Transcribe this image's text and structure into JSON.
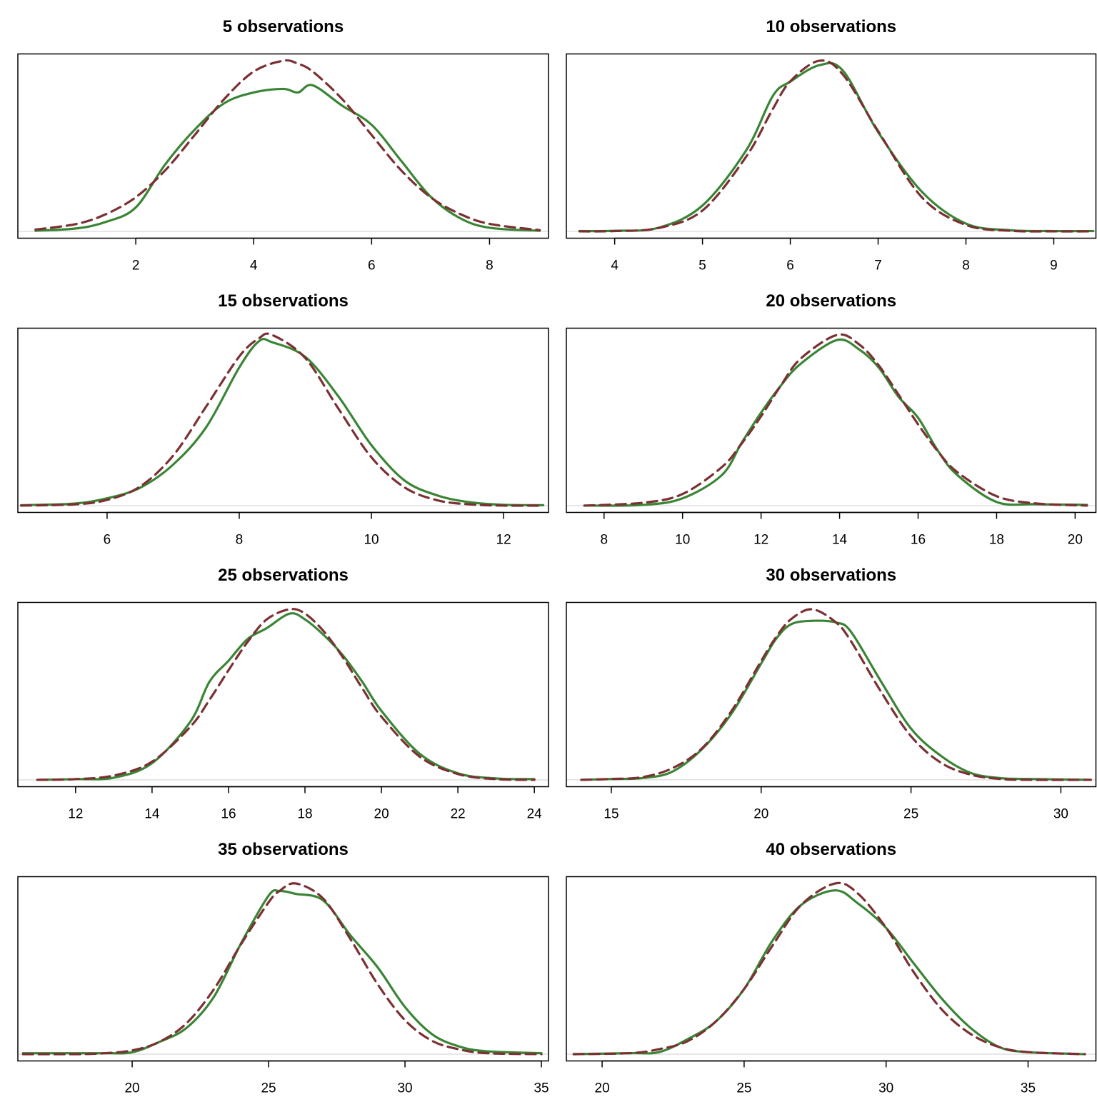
{
  "chart_data": [
    {
      "type": "line",
      "title": "5 observations",
      "x": [
        0.3,
        1,
        1.5,
        2,
        2.5,
        3,
        3.5,
        4,
        4.5,
        4.75,
        5,
        5.5,
        6,
        6.5,
        7,
        7.5,
        8,
        8.85
      ],
      "series": [
        {
          "color": "#3a8535",
          "linestyle": "solid",
          "values": [
            0.001,
            0.005,
            0.016,
            0.04,
            0.112,
            0.17,
            0.214,
            0.232,
            0.238,
            0.232,
            0.244,
            0.21,
            0.178,
            0.118,
            0.058,
            0.022,
            0.006,
            0.001
          ]
        },
        {
          "color": "#7b3033",
          "linestyle": "dashed",
          "values": [
            0.003,
            0.0125,
            0.029,
            0.057,
            0.102,
            0.161,
            0.221,
            0.267,
            0.285,
            0.28,
            0.267,
            0.221,
            0.161,
            0.102,
            0.057,
            0.029,
            0.0125,
            0.002
          ]
        }
      ],
      "xlim": [
        0,
        9
      ],
      "xticks": [
        2,
        4,
        6,
        8
      ],
      "ylim": [
        -0.0114,
        0.2964
      ]
    },
    {
      "type": "line",
      "title": "10 observations",
      "x": [
        3.6,
        4,
        4.5,
        5,
        5.5,
        5.8,
        6,
        6.33,
        6.6,
        7,
        7.5,
        8,
        8.5,
        9,
        9.45
      ],
      "series": [
        {
          "color": "#3a8535",
          "linestyle": "solid",
          "values": [
            0.001,
            0.002,
            0.013,
            0.093,
            0.293,
            0.487,
            0.539,
            0.598,
            0.578,
            0.357,
            0.142,
            0.028,
            0.004,
            0.001,
            0.001
          ]
        },
        {
          "color": "#7b3033",
          "linestyle": "dashed",
          "values": [
            0,
            0.001,
            0.012,
            0.075,
            0.27,
            0.44,
            0.54,
            0.614,
            0.564,
            0.361,
            0.122,
            0.023,
            0.002,
            0,
            0
          ]
        }
      ],
      "xlim": [
        3.45,
        9.48
      ],
      "xticks": [
        4,
        5,
        6,
        7,
        8,
        9
      ],
      "ylim": [
        -0.0246,
        0.6386
      ]
    },
    {
      "type": "line",
      "title": "15 observations",
      "x": [
        4.7,
        5.5,
        6,
        6.5,
        7,
        7.5,
        8,
        8.3,
        8.5,
        9,
        9.5,
        10,
        10.5,
        11,
        11.5,
        12,
        12.6
      ],
      "series": [
        {
          "color": "#3a8535",
          "linestyle": "solid",
          "values": [
            0.001,
            0.005,
            0.018,
            0.044,
            0.101,
            0.193,
            0.34,
            0.405,
            0.402,
            0.366,
            0.269,
            0.149,
            0.062,
            0.025,
            0.008,
            0.002,
            0.001
          ]
        },
        {
          "color": "#7b3033",
          "linestyle": "dashed",
          "values": [
            0,
            0.003,
            0.014,
            0.047,
            0.123,
            0.244,
            0.367,
            0.412,
            0.42,
            0.363,
            0.239,
            0.119,
            0.045,
            0.013,
            0.003,
            0,
            0
          ]
        }
      ],
      "xlim": [
        4.65,
        12.68
      ],
      "xticks": [
        6,
        8,
        10,
        12
      ],
      "ylim": [
        -0.0168,
        0.4368
      ]
    },
    {
      "type": "line",
      "title": "20 observations",
      "x": [
        7.5,
        9,
        10,
        11,
        11.5,
        12,
        12.5,
        13,
        13.93,
        14.5,
        15,
        15.5,
        16,
        16.5,
        17,
        18,
        19,
        20.3
      ],
      "series": [
        {
          "color": "#3a8535",
          "linestyle": "solid",
          "values": [
            0,
            0.001,
            0.01,
            0.042,
            0.086,
            0.128,
            0.165,
            0.195,
            0.228,
            0.215,
            0.19,
            0.15,
            0.121,
            0.076,
            0.042,
            0.005,
            0.002,
            0.001
          ]
        },
        {
          "color": "#7b3033",
          "linestyle": "dashed",
          "values": [
            0,
            0.004,
            0.016,
            0.053,
            0.085,
            0.123,
            0.165,
            0.202,
            0.235,
            0.222,
            0.193,
            0.153,
            0.112,
            0.075,
            0.046,
            0.013,
            0.003,
            0
          ]
        }
      ],
      "xlim": [
        7.04,
        20.53
      ],
      "xticks": [
        8,
        10,
        12,
        14,
        16,
        18,
        20
      ],
      "ylim": [
        -0.0094,
        0.2444
      ]
    },
    {
      "type": "line",
      "title": "25 observations",
      "x": [
        11,
        12,
        13,
        14,
        15,
        15.5,
        16,
        16.5,
        17,
        17.6,
        18,
        18.5,
        19,
        19.5,
        20,
        21,
        22,
        23,
        24
      ],
      "series": [
        {
          "color": "#3a8535",
          "linestyle": "solid",
          "values": [
            0,
            0.001,
            0.003,
            0.023,
            0.08,
            0.135,
            0.164,
            0.194,
            0.209,
            0.229,
            0.221,
            0.199,
            0.171,
            0.135,
            0.095,
            0.036,
            0.009,
            0.002,
            0.001
          ]
        },
        {
          "color": "#7b3033",
          "linestyle": "dashed",
          "values": [
            0,
            0.001,
            0.006,
            0.025,
            0.073,
            0.11,
            0.151,
            0.19,
            0.221,
            0.235,
            0.229,
            0.204,
            0.168,
            0.126,
            0.087,
            0.032,
            0.008,
            0.001,
            0
          ]
        }
      ],
      "xlim": [
        10.49,
        24.37
      ],
      "xticks": [
        12,
        14,
        16,
        18,
        20,
        22,
        24
      ],
      "ylim": [
        -0.0094,
        0.2444
      ]
    },
    {
      "type": "line",
      "title": "30 observations",
      "x": [
        14,
        15,
        16,
        17,
        18,
        19,
        20,
        20.5,
        21,
        21.7,
        22.5,
        23,
        24,
        25,
        26,
        27,
        28,
        29,
        31
      ],
      "series": [
        {
          "color": "#3a8535",
          "linestyle": "solid",
          "values": [
            0,
            0.001,
            0.002,
            0.009,
            0.035,
            0.077,
            0.136,
            0.165,
            0.182,
            0.186,
            0.184,
            0.173,
            0.115,
            0.06,
            0.028,
            0.008,
            0.002,
            0.001,
            0
          ]
        },
        {
          "color": "#7b3033",
          "linestyle": "dashed",
          "values": [
            0,
            0.001,
            0.003,
            0.013,
            0.036,
            0.08,
            0.139,
            0.167,
            0.188,
            0.1995,
            0.184,
            0.162,
            0.103,
            0.051,
            0.02,
            0.006,
            0.001,
            0,
            0
          ]
        }
      ],
      "xlim": [
        13.5,
        31.17
      ],
      "xticks": [
        15,
        20,
        25,
        30
      ],
      "ylim": [
        -0.008,
        0.2075
      ]
    },
    {
      "type": "line",
      "title": "35 observations",
      "x": [
        16,
        18,
        19,
        20,
        21,
        22,
        23,
        24,
        25,
        25.4,
        26,
        27,
        28,
        29,
        30,
        31,
        32,
        33,
        35
      ],
      "series": [
        {
          "color": "#3a8535",
          "linestyle": "solid",
          "values": [
            0.001,
            0.001,
            0.001,
            0.002,
            0.013,
            0.028,
            0.061,
            0.118,
            0.168,
            0.173,
            0.17,
            0.163,
            0.126,
            0.092,
            0.05,
            0.021,
            0.008,
            0.003,
            0.001
          ]
        },
        {
          "color": "#7b3033",
          "linestyle": "dashed",
          "values": [
            0,
            0,
            0.001,
            0.004,
            0.013,
            0.033,
            0.069,
            0.117,
            0.161,
            0.173,
            0.181,
            0.165,
            0.122,
            0.074,
            0.036,
            0.014,
            0.005,
            0.001,
            0
          ]
        }
      ],
      "xlim": [
        15.81,
        35.26
      ],
      "xticks": [
        20,
        25,
        30,
        35
      ],
      "ylim": [
        -0.0072,
        0.1882
      ]
    },
    {
      "type": "line",
      "title": "40 observations",
      "x": [
        19,
        21,
        22,
        23,
        24,
        25,
        26,
        27,
        28.2,
        29,
        30,
        31,
        32,
        33,
        34,
        35,
        37
      ],
      "series": [
        {
          "color": "#3a8535",
          "linestyle": "solid",
          "values": [
            0,
            0.001,
            0.002,
            0.015,
            0.033,
            0.066,
            0.115,
            0.151,
            0.166,
            0.153,
            0.128,
            0.091,
            0.055,
            0.026,
            0.007,
            0.002,
            0
          ]
        },
        {
          "color": "#7b3033",
          "linestyle": "dashed",
          "values": [
            0,
            0.001,
            0.005,
            0.013,
            0.033,
            0.066,
            0.11,
            0.151,
            0.173,
            0.163,
            0.128,
            0.082,
            0.044,
            0.02,
            0.007,
            0.002,
            0
          ]
        }
      ],
      "xlim": [
        18.74,
        37.39
      ],
      "xticks": [
        20,
        25,
        30,
        35
      ],
      "ylim": [
        -0.0069,
        0.1799
      ]
    }
  ]
}
